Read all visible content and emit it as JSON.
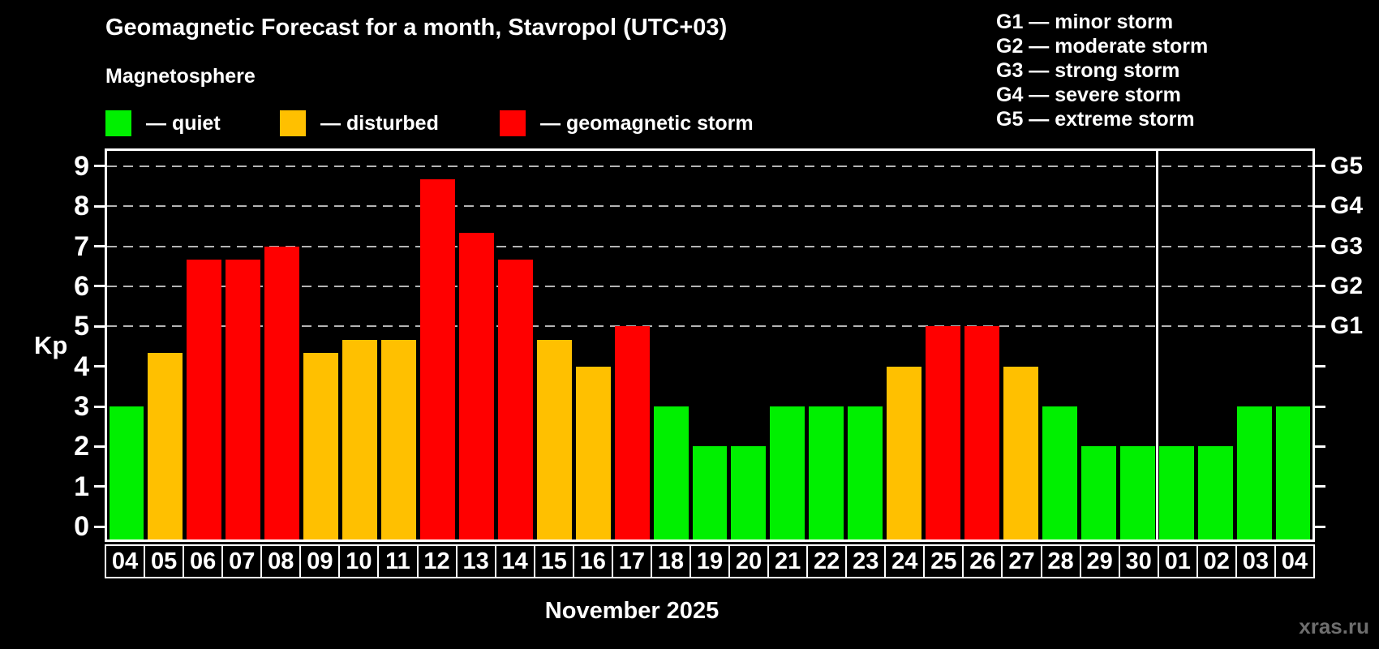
{
  "header": {
    "subtitle": "Magnetosphere"
  },
  "legend": {
    "items": [
      {
        "key": "quiet",
        "label": "— quiet",
        "color": "#00f000"
      },
      {
        "key": "disturbed",
        "label": "— disturbed",
        "color": "#ffc000"
      },
      {
        "key": "storm",
        "label": "— geomagnetic storm",
        "color": "#ff0000"
      }
    ]
  },
  "g_legend": {
    "lines": [
      "G1 — minor storm",
      "G2 — moderate storm",
      "G3 — strong storm",
      "G4 — severe storm",
      "G5 — extreme storm"
    ]
  },
  "watermark": "xras.ru",
  "colors": {
    "quiet": "#00f000",
    "disturbed": "#ffc000",
    "storm": "#ff0000",
    "gridline": "#b4b4b4",
    "frame": "#ffffff"
  },
  "chart_data": {
    "type": "bar",
    "title": "Geomagnetic Forecast for a month, Stavropol (UTC+03)",
    "xlabel": "November 2025",
    "ylabel": "Kp",
    "ylim": [
      -0.32,
      9.38
    ],
    "grid": "dashed horizontal at Kp 5-9 only",
    "gridlines_at": [
      5,
      6,
      7,
      8,
      9
    ],
    "left_ticks": [
      0,
      1,
      2,
      3,
      4,
      5,
      6,
      7,
      8,
      9
    ],
    "right_axis_labels": [
      {
        "kp": 9,
        "label": "G5"
      },
      {
        "kp": 8,
        "label": "G4"
      },
      {
        "kp": 7,
        "label": "G3"
      },
      {
        "kp": 6,
        "label": "G2"
      },
      {
        "kp": 5,
        "label": "G1"
      }
    ],
    "categories": [
      "04",
      "05",
      "06",
      "07",
      "08",
      "09",
      "10",
      "11",
      "12",
      "13",
      "14",
      "15",
      "16",
      "17",
      "18",
      "19",
      "20",
      "21",
      "22",
      "23",
      "24",
      "25",
      "26",
      "27",
      "28",
      "29",
      "30",
      "01",
      "02",
      "03",
      "04"
    ],
    "values": [
      3,
      4.33,
      6.67,
      6.67,
      7,
      4.33,
      4.67,
      4.67,
      8.67,
      7.33,
      6.67,
      4.67,
      4,
      5,
      3,
      2,
      2,
      3,
      3,
      3,
      4,
      5,
      5,
      4,
      3,
      2,
      2,
      2,
      2,
      3,
      3
    ],
    "statuses": [
      "quiet",
      "disturbed",
      "storm",
      "storm",
      "storm",
      "disturbed",
      "disturbed",
      "disturbed",
      "storm",
      "storm",
      "storm",
      "disturbed",
      "disturbed",
      "storm",
      "quiet",
      "quiet",
      "quiet",
      "quiet",
      "quiet",
      "quiet",
      "disturbed",
      "storm",
      "storm",
      "disturbed",
      "quiet",
      "quiet",
      "quiet",
      "quiet",
      "quiet",
      "quiet",
      "quiet"
    ],
    "month_separator_after_index": 26
  }
}
